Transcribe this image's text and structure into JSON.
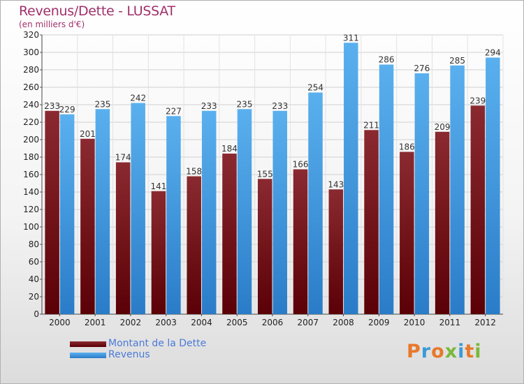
{
  "title": "Revenus/Dette - LUSSAT",
  "subtitle": "(en milliers d'€)",
  "chart_data": {
    "type": "bar",
    "categories": [
      "2000",
      "2001",
      "2002",
      "2003",
      "2004",
      "2005",
      "2006",
      "2007",
      "2008",
      "2009",
      "2010",
      "2011",
      "2012"
    ],
    "series": [
      {
        "name": "Montant de la Dette",
        "values": [
          233,
          201,
          174,
          141,
          158,
          184,
          155,
          166,
          143,
          211,
          186,
          209,
          239
        ],
        "color": "#6a0e12"
      },
      {
        "name": "Revenus",
        "values": [
          229,
          235,
          242,
          227,
          233,
          235,
          233,
          254,
          311,
          286,
          276,
          285,
          294
        ],
        "color": "#4fa6e8"
      }
    ],
    "ylim": [
      0,
      320
    ],
    "yticks": [
      0,
      20,
      40,
      60,
      80,
      100,
      120,
      140,
      160,
      180,
      200,
      220,
      240,
      260,
      280,
      300,
      320
    ],
    "grid": true,
    "legend_position": "bottom-left"
  },
  "logo": {
    "text": "Proxiti",
    "colors": [
      "#e8782a",
      "#3a9ad8",
      "#e8782a",
      "#7ab83a",
      "#3a9ad8",
      "#e8782a",
      "#7ab83a"
    ]
  }
}
